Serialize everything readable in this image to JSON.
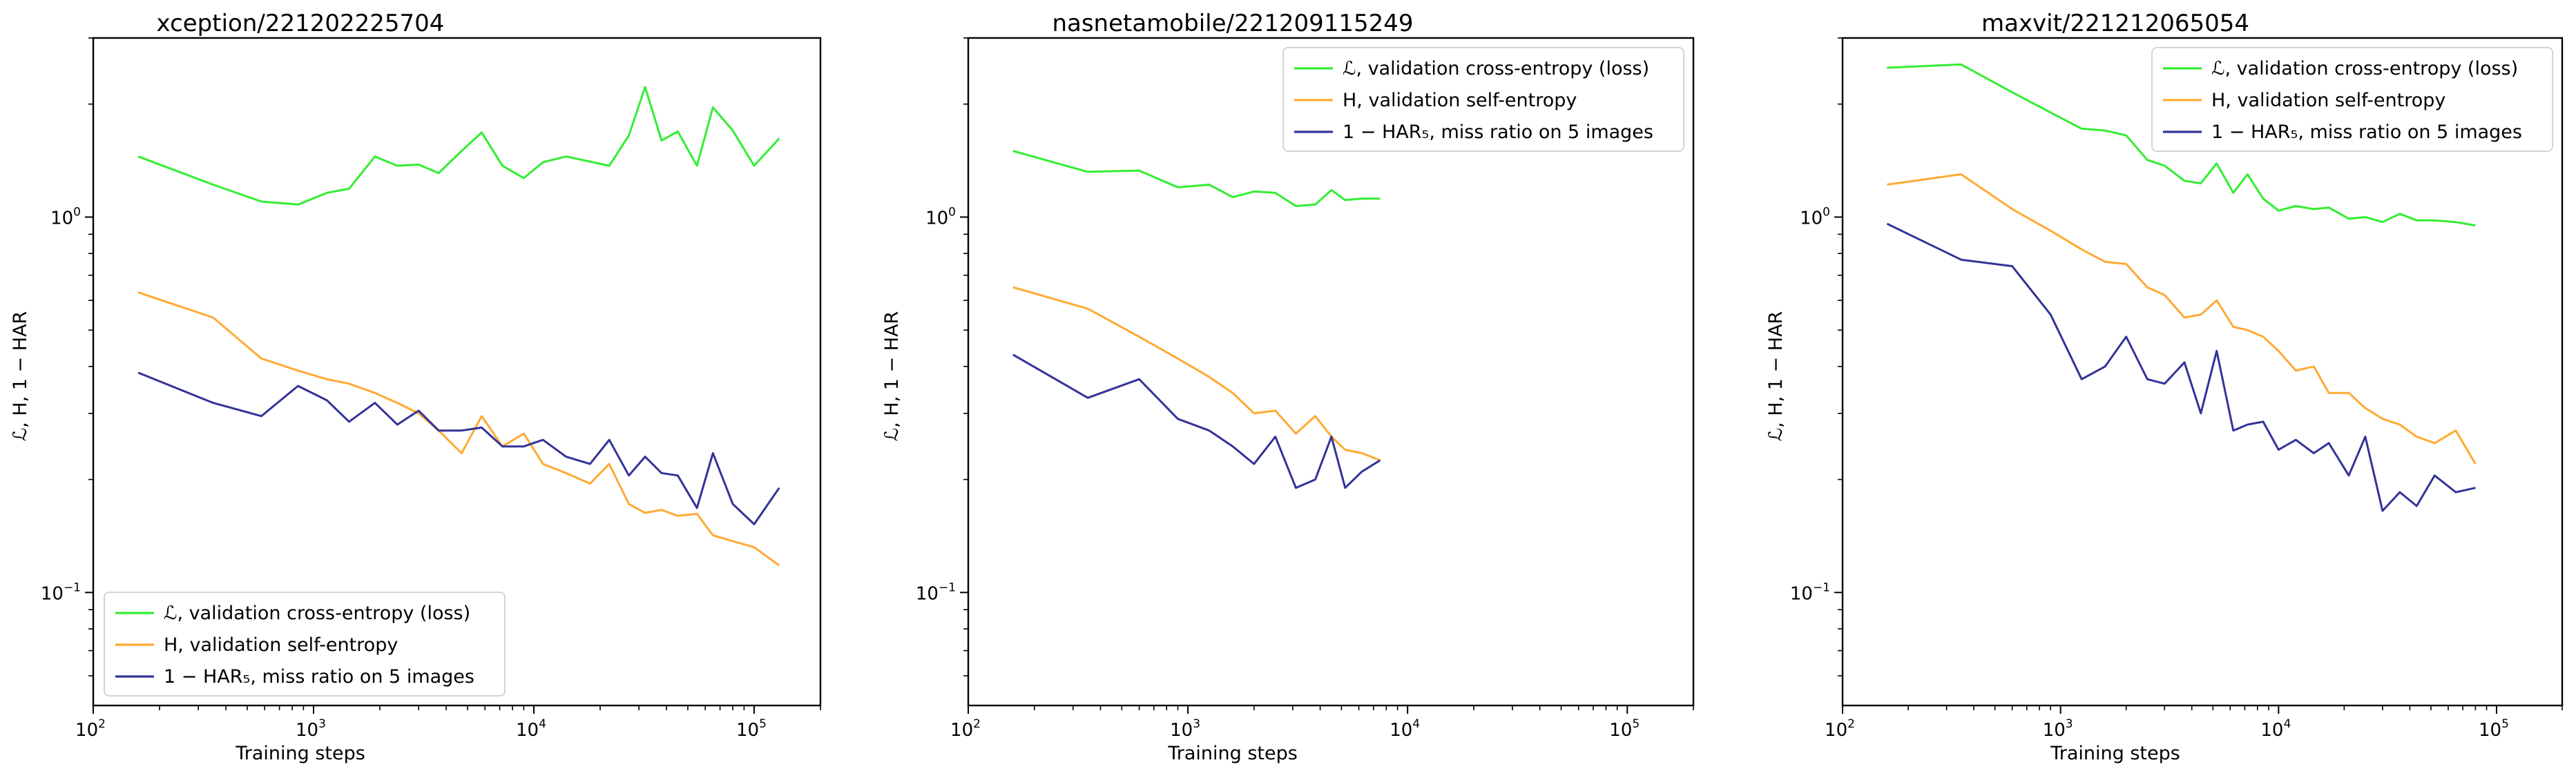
{
  "chart_data": [
    {
      "type": "line",
      "title": "xception/221202225704",
      "xlabel": "Training steps",
      "ylabel": "ℒ, H, 1 − HAR",
      "xscale": "log",
      "yscale": "log",
      "xlim": [
        100,
        200000
      ],
      "ylim": [
        0.05,
        3.0
      ],
      "xticks": [
        "10",
        "10",
        "10",
        "10"
      ],
      "xtick_exponents": [
        "2",
        "3",
        "4",
        "5"
      ],
      "yticks": [
        "10",
        "10"
      ],
      "ytick_exponents": [
        "−1",
        "0"
      ],
      "grid": false,
      "legend_position": "lower-left",
      "series": [
        {
          "name": "ℒ, validation cross-entropy (loss)",
          "color": "#33ee33",
          "x": [
            160,
            350,
            580,
            850,
            1150,
            1450,
            1900,
            2400,
            3000,
            3700,
            4700,
            5800,
            7200,
            9000,
            11000,
            14000,
            22000,
            27000,
            32000,
            38000,
            45000,
            55000,
            65000,
            80000,
            100000,
            130000
          ],
          "y": [
            1.45,
            1.22,
            1.1,
            1.08,
            1.16,
            1.19,
            1.45,
            1.37,
            1.38,
            1.31,
            1.5,
            1.68,
            1.37,
            1.27,
            1.4,
            1.45,
            1.37,
            1.65,
            2.22,
            1.6,
            1.69,
            1.37,
            1.96,
            1.7,
            1.37,
            1.62
          ]
        },
        {
          "name": "H, validation self-entropy",
          "color": "#ffaa33",
          "x": [
            160,
            350,
            580,
            850,
            1150,
            1450,
            1900,
            2400,
            3000,
            3700,
            4700,
            5800,
            7200,
            9000,
            11000,
            14000,
            18000,
            22000,
            27000,
            32000,
            38000,
            45000,
            55000,
            65000,
            80000,
            100000,
            130000
          ],
          "y": [
            0.63,
            0.54,
            0.42,
            0.39,
            0.37,
            0.36,
            0.34,
            0.32,
            0.3,
            0.27,
            0.235,
            0.295,
            0.245,
            0.265,
            0.22,
            0.208,
            0.195,
            0.22,
            0.172,
            0.163,
            0.166,
            0.16,
            0.162,
            0.142,
            0.137,
            0.132,
            0.118
          ]
        },
        {
          "name": "1 − HAR₅, miss ratio on 5 images",
          "color": "#333399",
          "x": [
            160,
            350,
            580,
            850,
            1150,
            1450,
            1900,
            2400,
            3000,
            3700,
            4700,
            5800,
            7200,
            9000,
            11000,
            14000,
            18000,
            22000,
            27000,
            32000,
            38000,
            45000,
            55000,
            65000,
            80000,
            100000,
            130000
          ],
          "y": [
            0.385,
            0.32,
            0.295,
            0.355,
            0.325,
            0.285,
            0.32,
            0.28,
            0.305,
            0.27,
            0.27,
            0.275,
            0.245,
            0.245,
            0.255,
            0.23,
            0.22,
            0.255,
            0.205,
            0.23,
            0.208,
            0.205,
            0.168,
            0.235,
            0.172,
            0.152,
            0.19
          ]
        }
      ]
    },
    {
      "type": "line",
      "title": "nasnetamobile/221209115249",
      "xlabel": "Training steps",
      "ylabel": "ℒ, H, 1 − HAR",
      "xscale": "log",
      "yscale": "log",
      "xlim": [
        100,
        200000
      ],
      "ylim": [
        0.05,
        3.0
      ],
      "xticks": [
        "10",
        "10",
        "10",
        "10"
      ],
      "xtick_exponents": [
        "2",
        "3",
        "4",
        "5"
      ],
      "yticks": [
        "10",
        "10"
      ],
      "ytick_exponents": [
        "−1",
        "0"
      ],
      "grid": false,
      "legend_position": "top-right",
      "series": [
        {
          "name": "ℒ, validation cross-entropy (loss)",
          "color": "#33ee33",
          "x": [
            160,
            350,
            600,
            900,
            1250,
            1600,
            2000,
            2500,
            3100,
            3800,
            4500,
            5200,
            6200,
            7500
          ],
          "y": [
            1.5,
            1.32,
            1.33,
            1.2,
            1.22,
            1.13,
            1.17,
            1.16,
            1.07,
            1.08,
            1.18,
            1.11,
            1.12,
            1.12
          ]
        },
        {
          "name": "H, validation self-entropy",
          "color": "#ffaa33",
          "x": [
            160,
            350,
            600,
            900,
            1250,
            1600,
            2000,
            2500,
            3100,
            3800,
            4500,
            5200,
            6200,
            7500
          ],
          "y": [
            0.65,
            0.57,
            0.48,
            0.42,
            0.375,
            0.34,
            0.3,
            0.305,
            0.265,
            0.295,
            0.26,
            0.24,
            0.235,
            0.225
          ]
        },
        {
          "name": "1 − HAR₅, miss ratio on 5 images",
          "color": "#333399",
          "x": [
            160,
            350,
            600,
            900,
            1250,
            1600,
            2000,
            2500,
            3100,
            3800,
            4500,
            5200,
            6200,
            7500
          ],
          "y": [
            0.43,
            0.33,
            0.37,
            0.29,
            0.27,
            0.245,
            0.22,
            0.26,
            0.19,
            0.2,
            0.26,
            0.19,
            0.21,
            0.225
          ]
        }
      ]
    },
    {
      "type": "line",
      "title": "maxvit/221212065054",
      "xlabel": "Training steps",
      "ylabel": "ℒ, H, 1 − HAR",
      "xscale": "log",
      "yscale": "log",
      "xlim": [
        100,
        200000
      ],
      "ylim": [
        0.05,
        3.0
      ],
      "xticks": [
        "10",
        "10",
        "10",
        "10"
      ],
      "xtick_exponents": [
        "2",
        "3",
        "4",
        "5"
      ],
      "yticks": [
        "10",
        "10"
      ],
      "ytick_exponents": [
        "−1",
        "0"
      ],
      "grid": false,
      "legend_position": "top-right",
      "series": [
        {
          "name": "ℒ, validation cross-entropy (loss)",
          "color": "#33ee33",
          "x": [
            160,
            350,
            600,
            900,
            1250,
            1600,
            2000,
            2500,
            3000,
            3700,
            4400,
            5200,
            6200,
            7200,
            8500,
            10000,
            12000,
            14500,
            17000,
            21000,
            25000,
            30000,
            36000,
            43000,
            52000,
            65000,
            80000
          ],
          "y": [
            2.5,
            2.55,
            2.15,
            1.9,
            1.72,
            1.7,
            1.65,
            1.42,
            1.37,
            1.25,
            1.23,
            1.39,
            1.16,
            1.3,
            1.12,
            1.04,
            1.07,
            1.05,
            1.06,
            0.99,
            1.0,
            0.97,
            1.02,
            0.98,
            0.98,
            0.97,
            0.95
          ]
        },
        {
          "name": "H, validation self-entropy",
          "color": "#ffaa33",
          "x": [
            160,
            350,
            600,
            900,
            1250,
            1600,
            2000,
            2500,
            3000,
            3700,
            4400,
            5200,
            6200,
            7200,
            8500,
            10000,
            12000,
            14500,
            17000,
            21000,
            25000,
            30000,
            36000,
            43000,
            52000,
            65000,
            80000
          ],
          "y": [
            1.22,
            1.3,
            1.05,
            0.92,
            0.82,
            0.76,
            0.75,
            0.65,
            0.62,
            0.54,
            0.55,
            0.6,
            0.51,
            0.5,
            0.48,
            0.44,
            0.39,
            0.4,
            0.34,
            0.34,
            0.31,
            0.29,
            0.28,
            0.26,
            0.25,
            0.27,
            0.22
          ]
        },
        {
          "name": "1 − HAR₅, miss ratio on 5 images",
          "color": "#333399",
          "x": [
            160,
            350,
            600,
            900,
            1250,
            1600,
            2000,
            2500,
            3000,
            3700,
            4400,
            5200,
            6200,
            7200,
            8500,
            10000,
            12000,
            14500,
            17000,
            21000,
            25000,
            30000,
            36000,
            43000,
            52000,
            65000,
            80000
          ],
          "y": [
            0.96,
            0.77,
            0.74,
            0.55,
            0.37,
            0.4,
            0.48,
            0.37,
            0.36,
            0.41,
            0.3,
            0.44,
            0.27,
            0.28,
            0.285,
            0.24,
            0.255,
            0.235,
            0.25,
            0.205,
            0.26,
            0.165,
            0.185,
            0.17,
            0.205,
            0.185,
            0.19
          ]
        }
      ]
    }
  ]
}
